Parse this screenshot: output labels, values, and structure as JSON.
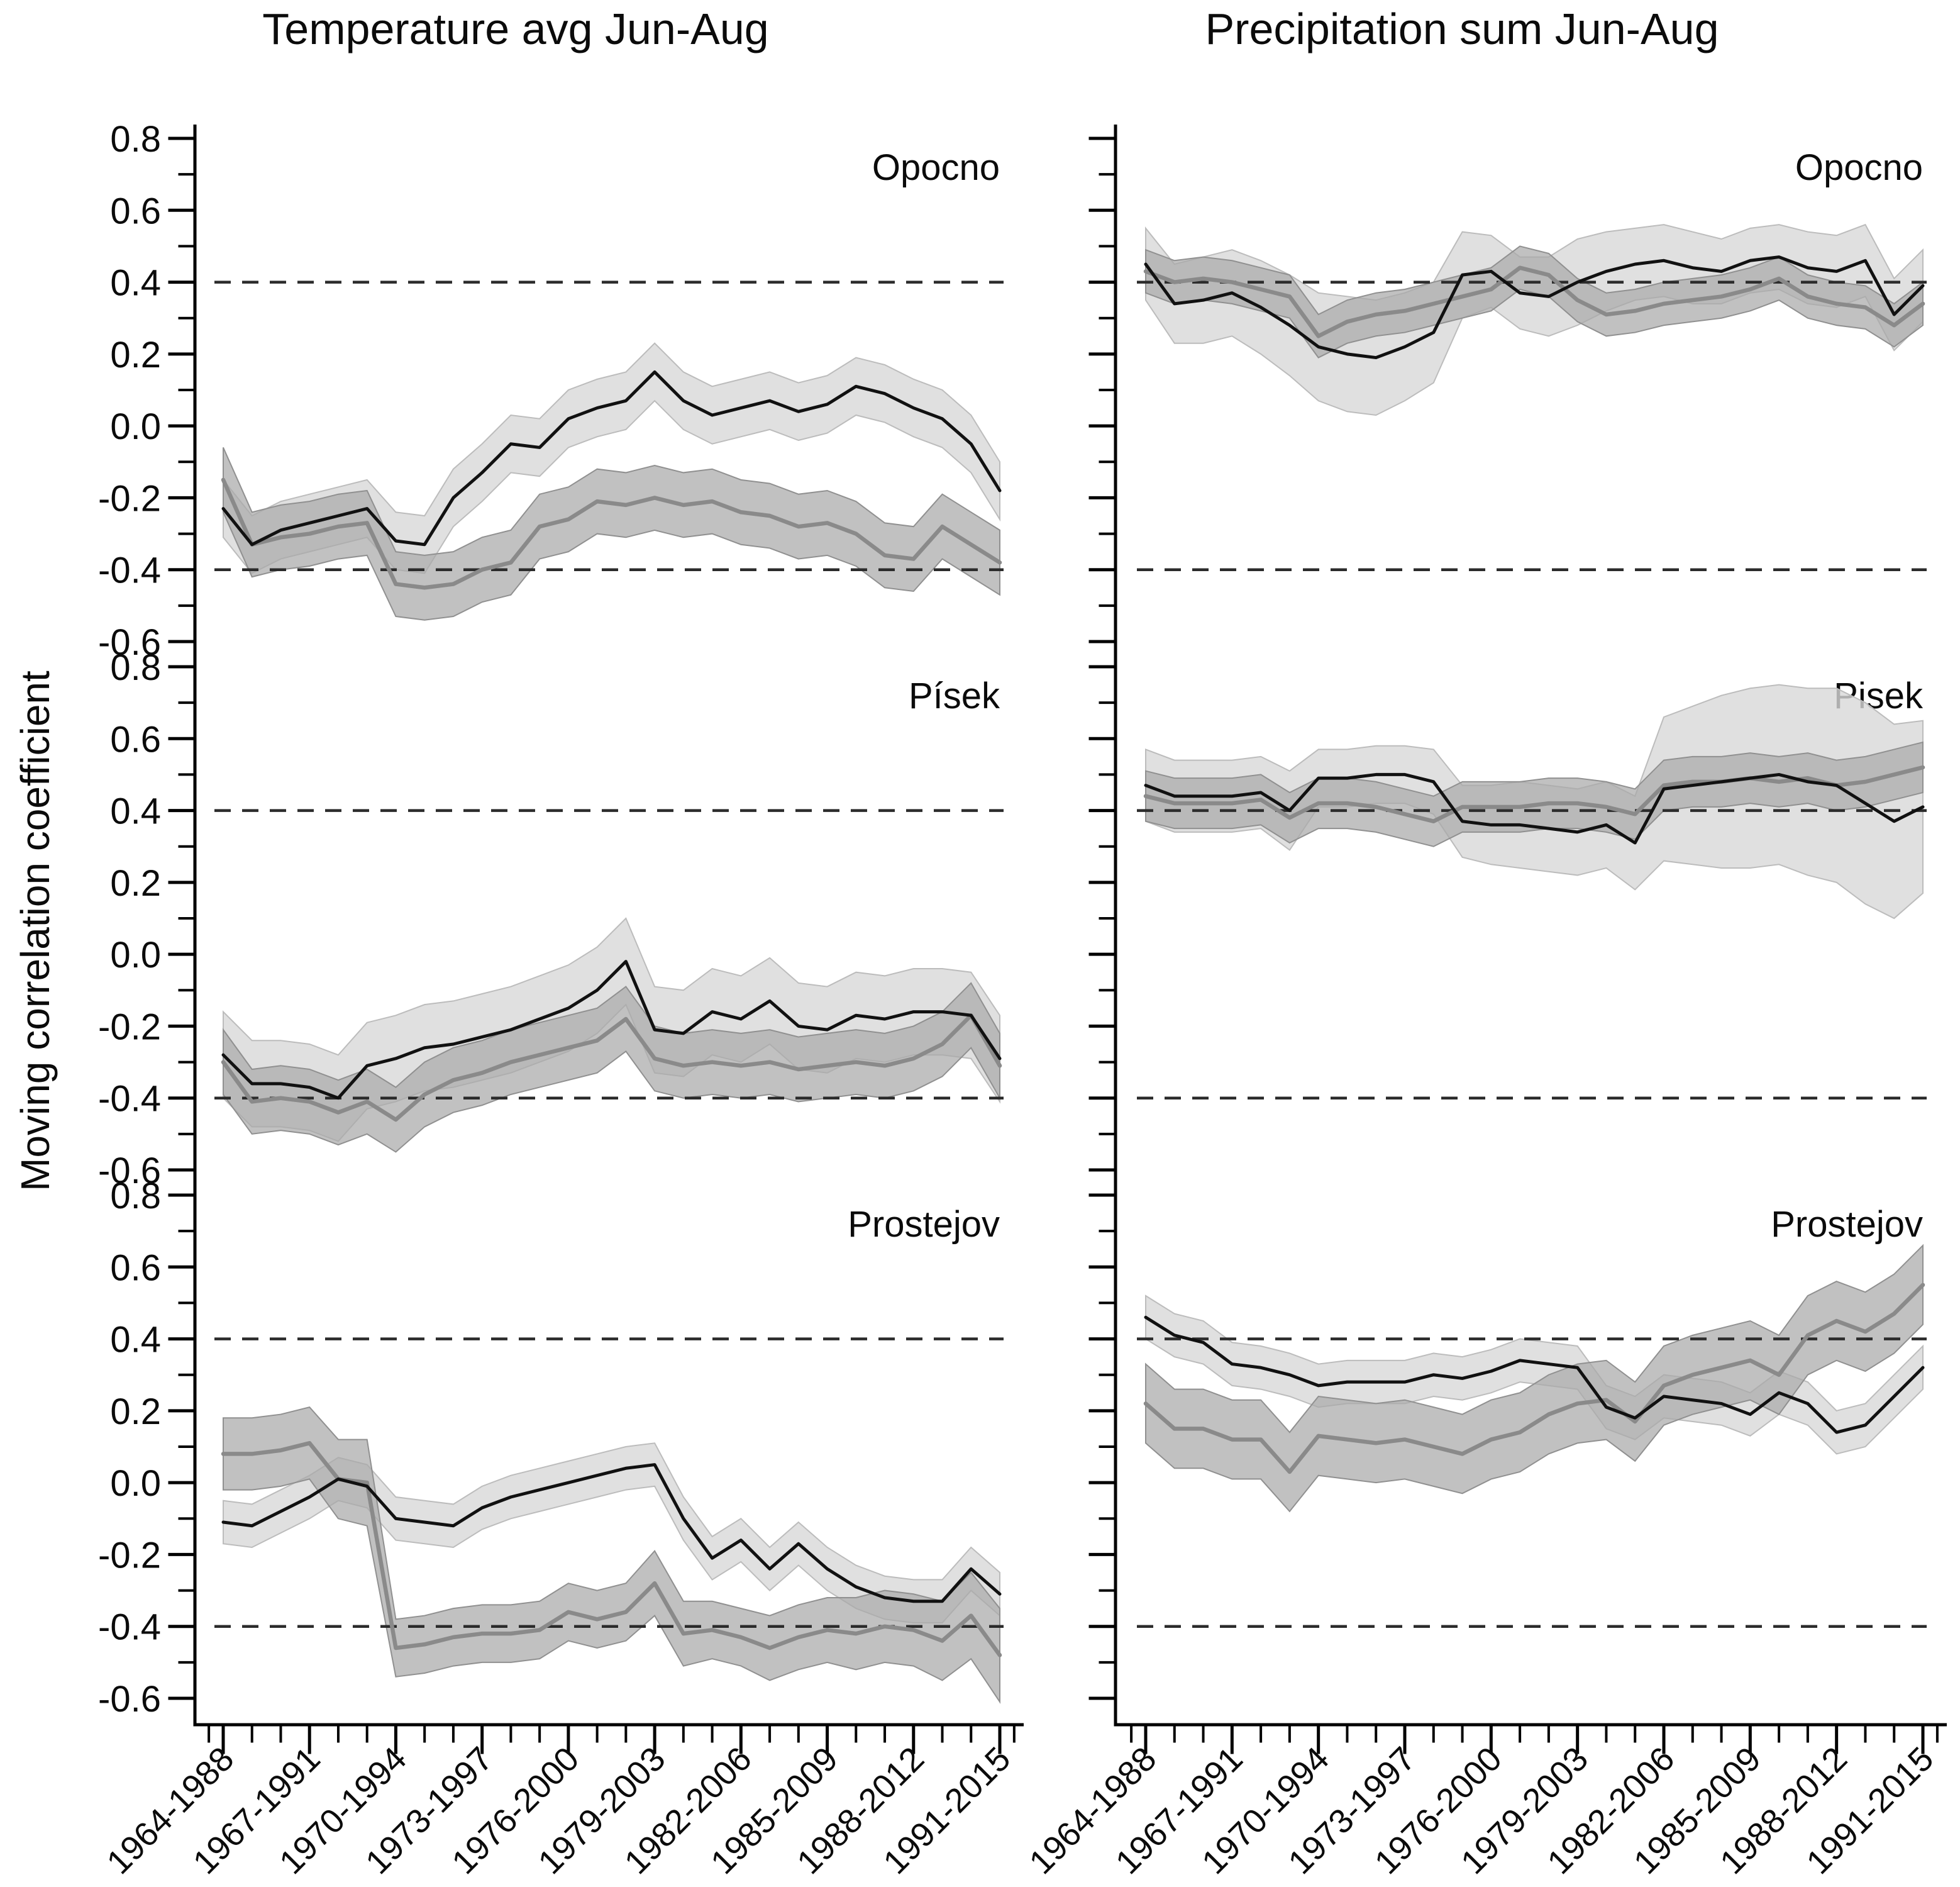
{
  "figure": {
    "column_titles": {
      "left": "Temperature avg Jun-Aug",
      "right": "Precipitation sum Jun-Aug"
    },
    "y_axis_label": "Moving correlation coefficient"
  },
  "axes": {
    "y_tick_labels": [
      "0.8",
      "0.6",
      "0.4",
      "0.2",
      "0.0",
      "-0.2",
      "-0.4",
      "-0.6"
    ],
    "y_tick_values": [
      0.8,
      0.6,
      0.4,
      0.2,
      0.0,
      -0.2,
      -0.4,
      -0.6
    ],
    "x_tick_labels": [
      "1964-1988",
      "1967-1991",
      "1970-1994",
      "1973-1997",
      "1976-2000",
      "1979-2003",
      "1982-2006",
      "1985-2009",
      "1988-2012",
      "1991-2015"
    ],
    "ylim": [
      -0.6,
      0.8
    ],
    "grid": false,
    "reference_lines": [
      0.4,
      -0.4
    ]
  },
  "colors": {
    "black_series": "#111111",
    "gray_series": "#8a8a8a",
    "light_band": "#d8d8d8",
    "dark_band": "#a9a9a9",
    "light_band_edge": "#bcbcbc",
    "dark_band_edge": "#909090",
    "dashed_line": "#2b2b2b",
    "axis": "#000000"
  },
  "chart_data": {
    "type": "line",
    "n_points": 28,
    "x_label_every": 3,
    "legend": "none",
    "panels": [
      {
        "id": "temp-opocno",
        "row": 0,
        "col": 0,
        "panel_label": "Opocno",
        "reference_lines": [
          0.4,
          -0.4
        ],
        "series": [
          {
            "name": "black-line",
            "color": "#111111",
            "width": 5,
            "band": 0.08,
            "band_color": "#d8d8d8",
            "values": [
              -0.23,
              -0.33,
              -0.29,
              -0.27,
              -0.25,
              -0.23,
              -0.32,
              -0.33,
              -0.2,
              -0.13,
              -0.05,
              -0.06,
              0.02,
              0.05,
              0.07,
              0.15,
              0.07,
              0.03,
              0.05,
              0.07,
              0.04,
              0.06,
              0.11,
              0.09,
              0.05,
              0.02,
              -0.05,
              -0.18
            ]
          },
          {
            "name": "gray-line",
            "color": "#8a8a8a",
            "width": 6.5,
            "band": 0.09,
            "band_color": "#a9a9a9",
            "values": [
              -0.15,
              -0.33,
              -0.31,
              -0.3,
              -0.28,
              -0.27,
              -0.44,
              -0.45,
              -0.44,
              -0.4,
              -0.38,
              -0.28,
              -0.26,
              -0.21,
              -0.22,
              -0.2,
              -0.22,
              -0.21,
              -0.24,
              -0.25,
              -0.28,
              -0.27,
              -0.3,
              -0.36,
              -0.37,
              -0.28,
              -0.33,
              -0.38
            ]
          }
        ]
      },
      {
        "id": "precip-opocno",
        "row": 0,
        "col": 1,
        "panel_label": "Opocno",
        "reference_lines": [
          0.4,
          -0.4
        ],
        "series": [
          {
            "name": "black-line",
            "color": "#111111",
            "width": 5,
            "band_color": "#d8d8d8",
            "band": [
              0.1,
              0.11,
              0.12,
              0.12,
              0.13,
              0.14,
              0.15,
              0.16,
              0.16,
              0.15,
              0.14,
              0.12,
              0.1,
              0.1,
              0.11,
              0.12,
              0.11,
              0.1,
              0.1,
              0.1,
              0.09,
              0.09,
              0.09,
              0.1,
              0.1,
              0.1,
              0.1,
              0.1
            ],
            "values": [
              0.45,
              0.34,
              0.35,
              0.37,
              0.33,
              0.28,
              0.22,
              0.2,
              0.19,
              0.22,
              0.26,
              0.42,
              0.43,
              0.37,
              0.36,
              0.4,
              0.43,
              0.45,
              0.46,
              0.44,
              0.43,
              0.46,
              0.47,
              0.44,
              0.43,
              0.46,
              0.31,
              0.39
            ]
          },
          {
            "name": "gray-line",
            "color": "#8a8a8a",
            "width": 6.5,
            "band": 0.06,
            "band_color": "#a9a9a9",
            "values": [
              0.43,
              0.4,
              0.41,
              0.4,
              0.38,
              0.36,
              0.25,
              0.29,
              0.31,
              0.32,
              0.34,
              0.36,
              0.38,
              0.44,
              0.42,
              0.35,
              0.31,
              0.32,
              0.34,
              0.35,
              0.36,
              0.38,
              0.41,
              0.36,
              0.34,
              0.33,
              0.28,
              0.34
            ]
          }
        ]
      },
      {
        "id": "temp-pisek",
        "row": 1,
        "col": 0,
        "panel_label": "Písek",
        "reference_lines": [
          0.4,
          -0.4
        ],
        "series": [
          {
            "name": "black-line",
            "color": "#111111",
            "width": 5,
            "band": 0.12,
            "band_color": "#d8d8d8",
            "values": [
              -0.28,
              -0.36,
              -0.36,
              -0.37,
              -0.4,
              -0.31,
              -0.29,
              -0.26,
              -0.25,
              -0.23,
              -0.21,
              -0.18,
              -0.15,
              -0.1,
              -0.02,
              -0.21,
              -0.22,
              -0.16,
              -0.18,
              -0.13,
              -0.2,
              -0.21,
              -0.17,
              -0.18,
              -0.16,
              -0.16,
              -0.17,
              -0.29
            ]
          },
          {
            "name": "gray-line",
            "color": "#8a8a8a",
            "width": 6.5,
            "band": 0.09,
            "band_color": "#a9a9a9",
            "values": [
              -0.3,
              -0.41,
              -0.4,
              -0.41,
              -0.44,
              -0.41,
              -0.46,
              -0.39,
              -0.35,
              -0.33,
              -0.3,
              -0.28,
              -0.26,
              -0.24,
              -0.18,
              -0.29,
              -0.31,
              -0.3,
              -0.31,
              -0.3,
              -0.32,
              -0.31,
              -0.3,
              -0.31,
              -0.29,
              -0.25,
              -0.17,
              -0.31
            ]
          }
        ]
      },
      {
        "id": "precip-pisek",
        "row": 1,
        "col": 1,
        "panel_label": "Pisek",
        "reference_lines": [
          0.4,
          -0.4
        ],
        "series": [
          {
            "name": "black-line",
            "color": "#111111",
            "width": 5,
            "band_color": "#d8d8d8",
            "band": [
              0.1,
              0.1,
              0.1,
              0.1,
              0.1,
              0.11,
              0.08,
              0.08,
              0.08,
              0.08,
              0.09,
              0.1,
              0.11,
              0.12,
              0.12,
              0.12,
              0.12,
              0.13,
              0.2,
              0.22,
              0.24,
              0.25,
              0.25,
              0.26,
              0.27,
              0.28,
              0.27,
              0.24
            ],
            "values": [
              0.47,
              0.44,
              0.44,
              0.44,
              0.45,
              0.4,
              0.49,
              0.49,
              0.5,
              0.5,
              0.48,
              0.37,
              0.36,
              0.36,
              0.35,
              0.34,
              0.36,
              0.31,
              0.46,
              0.47,
              0.48,
              0.49,
              0.5,
              0.48,
              0.47,
              0.42,
              0.37,
              0.41
            ]
          },
          {
            "name": "gray-line",
            "color": "#8a8a8a",
            "width": 6.5,
            "band": 0.07,
            "band_color": "#a9a9a9",
            "values": [
              0.44,
              0.42,
              0.42,
              0.42,
              0.43,
              0.38,
              0.42,
              0.42,
              0.41,
              0.39,
              0.37,
              0.41,
              0.41,
              0.41,
              0.42,
              0.42,
              0.41,
              0.39,
              0.47,
              0.48,
              0.48,
              0.49,
              0.48,
              0.49,
              0.47,
              0.48,
              0.5,
              0.52
            ]
          }
        ]
      },
      {
        "id": "temp-prostejov",
        "row": 2,
        "col": 0,
        "panel_label": "Prostejov",
        "reference_lines": [
          0.4,
          -0.4
        ],
        "series": [
          {
            "name": "black-line",
            "color": "#111111",
            "width": 5,
            "band": 0.06,
            "band_color": "#d8d8d8",
            "values": [
              -0.11,
              -0.12,
              -0.08,
              -0.04,
              0.01,
              -0.01,
              -0.1,
              -0.11,
              -0.12,
              -0.07,
              -0.04,
              -0.02,
              0.0,
              0.02,
              0.04,
              0.05,
              -0.1,
              -0.21,
              -0.16,
              -0.24,
              -0.17,
              -0.24,
              -0.29,
              -0.32,
              -0.33,
              -0.33,
              -0.24,
              -0.31
            ]
          },
          {
            "name": "gray-line",
            "color": "#8a8a8a",
            "width": 6.5,
            "band_color": "#a9a9a9",
            "band": [
              0.1,
              0.1,
              0.1,
              0.1,
              0.11,
              0.12,
              0.08,
              0.08,
              0.08,
              0.08,
              0.08,
              0.08,
              0.08,
              0.08,
              0.08,
              0.09,
              0.09,
              0.08,
              0.08,
              0.09,
              0.09,
              0.09,
              0.1,
              0.1,
              0.1,
              0.11,
              0.12,
              0.13
            ],
            "values": [
              0.08,
              0.08,
              0.09,
              0.11,
              0.01,
              0.0,
              -0.46,
              -0.45,
              -0.43,
              -0.42,
              -0.42,
              -0.41,
              -0.36,
              -0.38,
              -0.36,
              -0.28,
              -0.42,
              -0.41,
              -0.43,
              -0.46,
              -0.43,
              -0.41,
              -0.42,
              -0.4,
              -0.41,
              -0.44,
              -0.37,
              -0.48
            ]
          }
        ]
      },
      {
        "id": "precip-prostejov",
        "row": 2,
        "col": 1,
        "panel_label": "Prostejov",
        "reference_lines": [
          0.4,
          -0.4
        ],
        "series": [
          {
            "name": "black-line",
            "color": "#111111",
            "width": 5,
            "band": 0.06,
            "band_color": "#d8d8d8",
            "values": [
              0.46,
              0.41,
              0.39,
              0.33,
              0.32,
              0.3,
              0.27,
              0.28,
              0.28,
              0.28,
              0.3,
              0.29,
              0.31,
              0.34,
              0.33,
              0.32,
              0.21,
              0.18,
              0.24,
              0.23,
              0.22,
              0.19,
              0.25,
              0.22,
              0.14,
              0.16,
              0.24,
              0.32
            ]
          },
          {
            "name": "gray-line",
            "color": "#8a8a8a",
            "width": 6.5,
            "band": 0.11,
            "band_color": "#a9a9a9",
            "values": [
              0.22,
              0.15,
              0.15,
              0.12,
              0.12,
              0.03,
              0.13,
              0.12,
              0.11,
              0.12,
              0.1,
              0.08,
              0.12,
              0.14,
              0.19,
              0.22,
              0.23,
              0.17,
              0.27,
              0.3,
              0.32,
              0.34,
              0.3,
              0.41,
              0.45,
              0.42,
              0.47,
              0.55
            ]
          }
        ]
      }
    ]
  }
}
